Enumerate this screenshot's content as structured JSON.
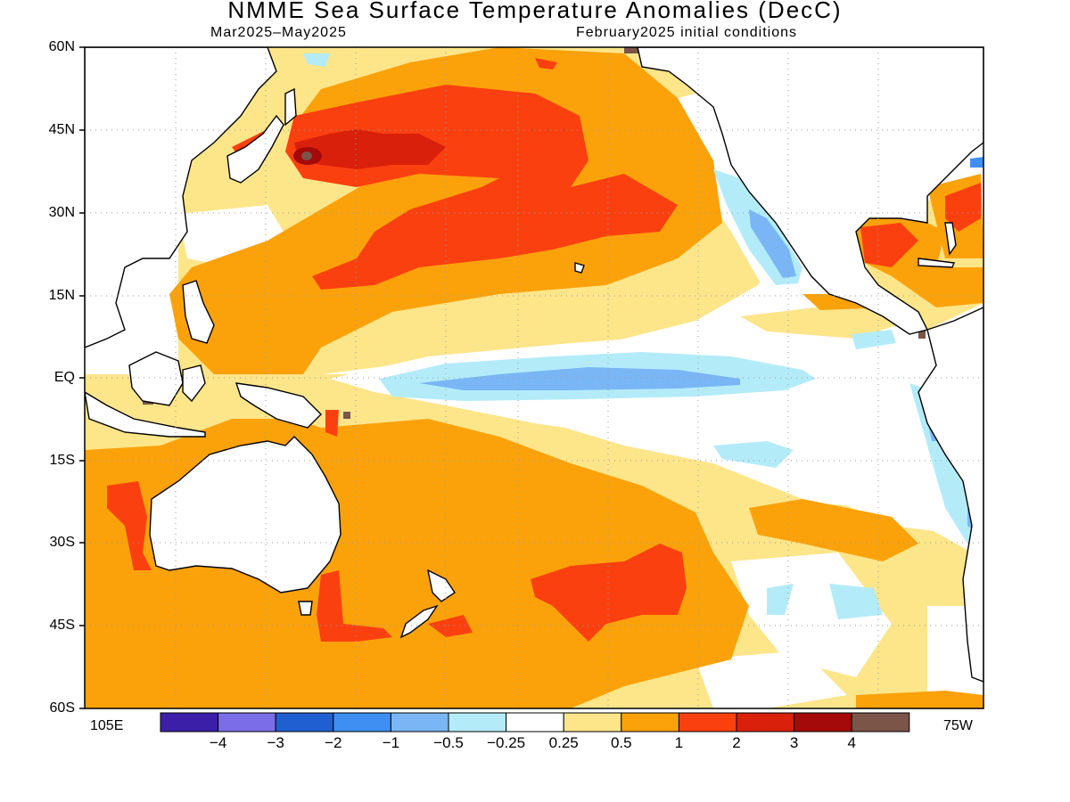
{
  "title": "NMME Sea Surface Temperature Anomalies (DecC)",
  "subtitle_left": "Mar2025–May2025",
  "subtitle_right": "February2025 initial conditions",
  "y_axis_labels": [
    "60N",
    "45N",
    "30N",
    "15N",
    "EQ",
    "15S",
    "30S",
    "45S",
    "60S"
  ],
  "x_axis_labels": {
    "left": "105E",
    "right": "75W"
  },
  "colorbar": {
    "colors": [
      "#3b1fa8",
      "#7b6ce8",
      "#1f5fd1",
      "#3f8ff2",
      "#7ab6f6",
      "#b3ecf8",
      "#ffffff",
      "#fde58a",
      "#fba20a",
      "#fb4010",
      "#d9200a",
      "#a50a0a",
      "#7a5548"
    ],
    "tick_labels": [
      "−4",
      "−3",
      "−2",
      "−1",
      "−0.5",
      "−0.25",
      "0.25",
      "0.5",
      "1",
      "2",
      "3",
      "4"
    ]
  }
}
